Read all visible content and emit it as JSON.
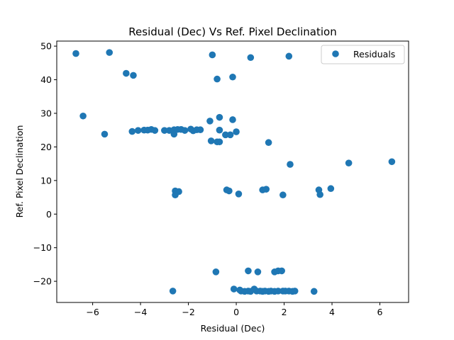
{
  "chart_data": {
    "type": "scatter",
    "title": "Residual (Dec) Vs Ref. Pixel Declination",
    "xlabel": "Residual (Dec)",
    "ylabel": "Ref. Pixel Declination",
    "xlim": [
      -7.5,
      7.2
    ],
    "ylim": [
      -26.3,
      51.5
    ],
    "xticks": [
      -6,
      -4,
      -2,
      0,
      2,
      4,
      6
    ],
    "yticks": [
      -20,
      -10,
      0,
      10,
      20,
      30,
      40,
      50
    ],
    "grid": false,
    "legend": {
      "placement": "top-right",
      "entries": [
        "Residuals"
      ]
    },
    "series": [
      {
        "name": "Residuals",
        "color": "#1f77b4",
        "points": [
          [
            -6.7,
            47.8
          ],
          [
            -5.3,
            48.1
          ],
          [
            -1.0,
            47.4
          ],
          [
            0.6,
            46.6
          ],
          [
            2.2,
            47.0
          ],
          [
            -4.6,
            41.9
          ],
          [
            -4.3,
            41.3
          ],
          [
            -0.8,
            40.2
          ],
          [
            -0.15,
            40.8
          ],
          [
            -6.4,
            29.2
          ],
          [
            -1.1,
            27.7
          ],
          [
            -0.7,
            28.8
          ],
          [
            -0.15,
            28.1
          ],
          [
            -4.35,
            24.6
          ],
          [
            -4.1,
            24.9
          ],
          [
            -3.85,
            25.0
          ],
          [
            -3.7,
            25.0
          ],
          [
            -3.55,
            25.2
          ],
          [
            -3.4,
            24.9
          ],
          [
            -3.0,
            24.9
          ],
          [
            -2.8,
            24.9
          ],
          [
            -2.6,
            25.1
          ],
          [
            -2.45,
            25.2
          ],
          [
            -2.3,
            25.2
          ],
          [
            -2.15,
            24.9
          ],
          [
            -1.9,
            25.3
          ],
          [
            -1.8,
            24.8
          ],
          [
            -1.65,
            25.1
          ],
          [
            -1.5,
            25.1
          ],
          [
            -2.6,
            23.8
          ],
          [
            -0.7,
            25.0
          ],
          [
            -0.45,
            23.6
          ],
          [
            -0.25,
            23.6
          ],
          [
            0.0,
            24.5
          ],
          [
            -5.5,
            23.8
          ],
          [
            -1.05,
            21.8
          ],
          [
            -0.8,
            21.5
          ],
          [
            -0.7,
            21.5
          ],
          [
            1.35,
            21.3
          ],
          [
            2.25,
            14.8
          ],
          [
            4.7,
            15.2
          ],
          [
            6.5,
            15.6
          ],
          [
            -2.55,
            6.9
          ],
          [
            -2.4,
            6.7
          ],
          [
            -2.55,
            5.7
          ],
          [
            -0.4,
            7.2
          ],
          [
            -0.3,
            6.9
          ],
          [
            0.1,
            6.0
          ],
          [
            1.1,
            7.2
          ],
          [
            1.25,
            7.4
          ],
          [
            1.95,
            5.7
          ],
          [
            3.45,
            7.2
          ],
          [
            3.5,
            5.8
          ],
          [
            3.95,
            7.6
          ],
          [
            -0.85,
            -17.2
          ],
          [
            0.5,
            -16.9
          ],
          [
            0.9,
            -17.2
          ],
          [
            1.6,
            -17.2
          ],
          [
            1.75,
            -16.9
          ],
          [
            1.9,
            -16.9
          ],
          [
            -2.65,
            -22.9
          ],
          [
            -0.1,
            -22.3
          ],
          [
            0.15,
            -22.6
          ],
          [
            0.2,
            -22.9
          ],
          [
            0.35,
            -23.0
          ],
          [
            0.5,
            -22.9
          ],
          [
            0.6,
            -23.0
          ],
          [
            0.75,
            -22.3
          ],
          [
            0.85,
            -22.9
          ],
          [
            1.0,
            -22.9
          ],
          [
            1.1,
            -23.0
          ],
          [
            1.2,
            -22.9
          ],
          [
            1.35,
            -23.0
          ],
          [
            1.45,
            -22.9
          ],
          [
            1.6,
            -23.0
          ],
          [
            1.75,
            -22.9
          ],
          [
            1.95,
            -22.9
          ],
          [
            2.05,
            -22.9
          ],
          [
            2.2,
            -22.9
          ],
          [
            2.35,
            -23.0
          ],
          [
            2.45,
            -22.9
          ],
          [
            3.25,
            -23.0
          ]
        ]
      }
    ]
  }
}
